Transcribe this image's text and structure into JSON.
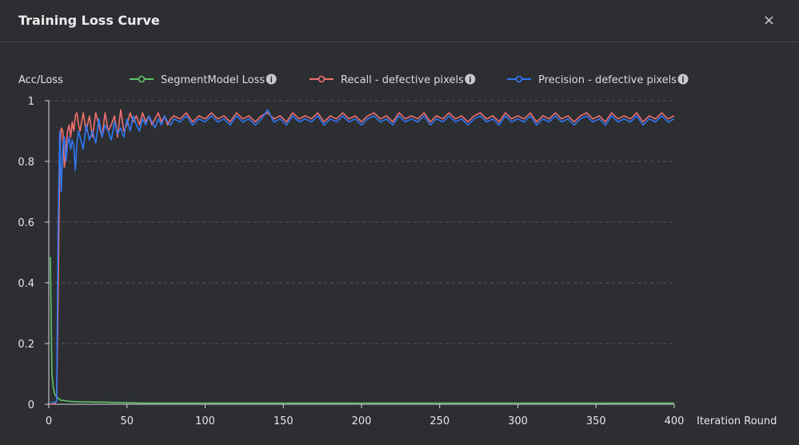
{
  "dialog": {
    "title": "Training Loss Curve",
    "close_label": "×"
  },
  "colors": {
    "background": "#2d2e32",
    "grid": "#55565b",
    "axis": "#d8d8d8",
    "loss": "#5fc56a",
    "recall": "#f0706f",
    "precision": "#2f77f5"
  },
  "chart_data": {
    "type": "line",
    "xlabel": "Iteration Round",
    "ylabel": "Acc/Loss",
    "xlim": [
      0,
      400
    ],
    "ylim": [
      0,
      1
    ],
    "xticks": [
      0,
      50,
      100,
      150,
      200,
      250,
      300,
      350,
      400
    ],
    "yticks": [
      0,
      0.2,
      0.4,
      0.6,
      0.8,
      1
    ],
    "grid": "horizontal dashed",
    "legend_position": "top",
    "series": [
      {
        "name": "SegmentModel Loss",
        "color": "#5fc56a",
        "info_icon": "info-icon",
        "x": [
          1,
          2,
          3,
          4,
          5,
          6,
          7,
          8,
          10,
          12,
          15,
          20,
          25,
          30,
          35,
          40,
          50,
          60,
          100,
          150,
          200,
          250,
          300,
          350,
          400
        ],
        "y": [
          0.485,
          0.1,
          0.05,
          0.03,
          0.025,
          0.02,
          0.015,
          0.013,
          0.012,
          0.01,
          0.009,
          0.008,
          0.008,
          0.007,
          0.007,
          0.006,
          0.005,
          0.004,
          0.004,
          0.004,
          0.004,
          0.004,
          0.004,
          0.004,
          0.004
        ]
      },
      {
        "name": "Recall - defective pixels",
        "color": "#f0706f",
        "info_icon": "info-icon",
        "x": [
          1,
          3,
          5,
          6,
          7,
          8,
          9,
          10,
          11,
          12,
          13,
          14,
          15,
          16,
          17,
          18,
          19,
          20,
          22,
          24,
          26,
          28,
          30,
          32,
          34,
          36,
          38,
          40,
          42,
          44,
          46,
          48,
          50,
          52,
          54,
          56,
          58,
          60,
          62,
          64,
          66,
          68,
          70,
          72,
          74,
          76,
          78,
          80,
          84,
          88,
          92,
          96,
          100,
          104,
          108,
          112,
          116,
          120,
          124,
          128,
          132,
          136,
          140,
          144,
          148,
          152,
          156,
          160,
          164,
          168,
          172,
          176,
          180,
          184,
          188,
          192,
          196,
          200,
          204,
          208,
          212,
          216,
          220,
          224,
          228,
          232,
          236,
          240,
          244,
          248,
          252,
          256,
          260,
          264,
          268,
          272,
          276,
          280,
          284,
          288,
          292,
          296,
          300,
          304,
          308,
          312,
          316,
          320,
          324,
          328,
          332,
          336,
          340,
          344,
          348,
          352,
          356,
          360,
          364,
          368,
          372,
          376,
          380,
          384,
          388,
          392,
          396,
          400
        ],
        "y": [
          0.0,
          0.0,
          0.01,
          0.35,
          0.82,
          0.91,
          0.9,
          0.78,
          0.84,
          0.9,
          0.92,
          0.88,
          0.93,
          0.9,
          0.95,
          0.96,
          0.92,
          0.9,
          0.96,
          0.9,
          0.95,
          0.88,
          0.96,
          0.92,
          0.88,
          0.96,
          0.9,
          0.92,
          0.95,
          0.88,
          0.97,
          0.9,
          0.92,
          0.96,
          0.93,
          0.95,
          0.92,
          0.96,
          0.93,
          0.95,
          0.92,
          0.94,
          0.96,
          0.93,
          0.95,
          0.92,
          0.94,
          0.95,
          0.94,
          0.96,
          0.93,
          0.95,
          0.94,
          0.96,
          0.94,
          0.95,
          0.93,
          0.96,
          0.94,
          0.95,
          0.93,
          0.95,
          0.96,
          0.94,
          0.95,
          0.93,
          0.96,
          0.94,
          0.95,
          0.94,
          0.96,
          0.93,
          0.95,
          0.94,
          0.96,
          0.94,
          0.95,
          0.93,
          0.95,
          0.96,
          0.94,
          0.95,
          0.93,
          0.96,
          0.94,
          0.95,
          0.94,
          0.96,
          0.93,
          0.95,
          0.94,
          0.96,
          0.94,
          0.95,
          0.93,
          0.95,
          0.96,
          0.94,
          0.95,
          0.93,
          0.96,
          0.94,
          0.95,
          0.94,
          0.96,
          0.93,
          0.95,
          0.94,
          0.96,
          0.94,
          0.95,
          0.93,
          0.95,
          0.96,
          0.94,
          0.95,
          0.93,
          0.96,
          0.94,
          0.95,
          0.94,
          0.96,
          0.93,
          0.95,
          0.94,
          0.96,
          0.94,
          0.95
        ]
      },
      {
        "name": "Precision - defective pixels",
        "color": "#2f77f5",
        "info_icon": "info-icon",
        "x": [
          1,
          3,
          5,
          6,
          7,
          8,
          9,
          10,
          11,
          12,
          13,
          14,
          15,
          16,
          17,
          18,
          19,
          20,
          22,
          24,
          26,
          28,
          30,
          32,
          34,
          36,
          38,
          40,
          42,
          44,
          46,
          48,
          50,
          52,
          54,
          56,
          58,
          60,
          62,
          64,
          66,
          68,
          70,
          72,
          74,
          76,
          78,
          80,
          84,
          88,
          92,
          96,
          100,
          104,
          108,
          112,
          116,
          120,
          124,
          128,
          132,
          136,
          140,
          144,
          148,
          152,
          156,
          160,
          164,
          168,
          172,
          176,
          180,
          184,
          188,
          192,
          196,
          200,
          204,
          208,
          212,
          216,
          220,
          224,
          228,
          232,
          236,
          240,
          244,
          248,
          252,
          256,
          260,
          264,
          268,
          272,
          276,
          280,
          284,
          288,
          292,
          296,
          300,
          304,
          308,
          312,
          316,
          320,
          324,
          328,
          332,
          336,
          340,
          344,
          348,
          352,
          356,
          360,
          364,
          368,
          372,
          376,
          380,
          384,
          388,
          392,
          396,
          400
        ],
        "y": [
          0.005,
          0.005,
          0.01,
          0.6,
          0.9,
          0.7,
          0.85,
          0.88,
          0.8,
          0.86,
          0.88,
          0.84,
          0.87,
          0.85,
          0.77,
          0.86,
          0.9,
          0.88,
          0.84,
          0.92,
          0.87,
          0.9,
          0.86,
          0.94,
          0.88,
          0.92,
          0.9,
          0.87,
          0.93,
          0.89,
          0.91,
          0.88,
          0.94,
          0.9,
          0.95,
          0.92,
          0.9,
          0.94,
          0.92,
          0.95,
          0.93,
          0.91,
          0.94,
          0.92,
          0.95,
          0.93,
          0.92,
          0.94,
          0.93,
          0.95,
          0.92,
          0.94,
          0.93,
          0.95,
          0.93,
          0.94,
          0.92,
          0.95,
          0.93,
          0.94,
          0.92,
          0.94,
          0.97,
          0.93,
          0.94,
          0.92,
          0.95,
          0.93,
          0.94,
          0.93,
          0.95,
          0.92,
          0.94,
          0.93,
          0.95,
          0.93,
          0.94,
          0.92,
          0.94,
          0.95,
          0.93,
          0.94,
          0.92,
          0.95,
          0.93,
          0.94,
          0.93,
          0.95,
          0.92,
          0.94,
          0.93,
          0.95,
          0.93,
          0.94,
          0.92,
          0.94,
          0.95,
          0.93,
          0.94,
          0.92,
          0.95,
          0.93,
          0.94,
          0.93,
          0.95,
          0.92,
          0.94,
          0.93,
          0.95,
          0.93,
          0.94,
          0.92,
          0.94,
          0.95,
          0.93,
          0.94,
          0.92,
          0.95,
          0.93,
          0.94,
          0.93,
          0.95,
          0.92,
          0.94,
          0.93,
          0.95,
          0.93,
          0.94
        ]
      }
    ]
  }
}
